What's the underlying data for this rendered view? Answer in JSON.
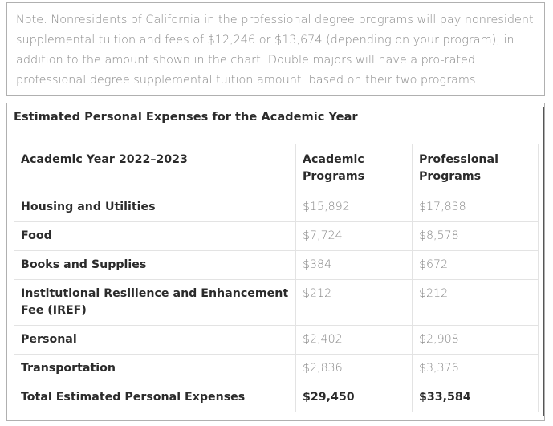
{
  "note": {
    "text": "Note: Nonresidents of California in the professional degree programs will pay nonresident supplemental tuition and fees of $12,246 or $13,674 (depending on your program), in addition to the amount shown in the chart. Double majors will have a pro-rated professional degree supplemental tuition amount, based on their two programs."
  },
  "expenses": {
    "caption": "Estimated Personal Expenses for the Academic Year",
    "headers": {
      "year": "Academic Year 2022–2023",
      "academic": "Academic Programs",
      "professional": "Professional Programs"
    },
    "rows": [
      {
        "label": "Housing and Utilities",
        "academic": "$15,892",
        "professional": "$17,838"
      },
      {
        "label": "Food",
        "academic": "$7,724",
        "professional": "$8,578"
      },
      {
        "label": "Books and Supplies",
        "academic": "$384",
        "professional": "$672"
      },
      {
        "label": "Institutional Resilience and Enhancement Fee (IREF)",
        "academic": "$212",
        "professional": "$212"
      },
      {
        "label": "Personal",
        "academic": "$2,402",
        "professional": "$2,908"
      },
      {
        "label": "Transportation",
        "academic": "$2,836",
        "professional": "$3,376"
      },
      {
        "label": "Total Estimated Personal Expenses",
        "academic": "$29,450",
        "professional": "$33,584"
      }
    ]
  }
}
